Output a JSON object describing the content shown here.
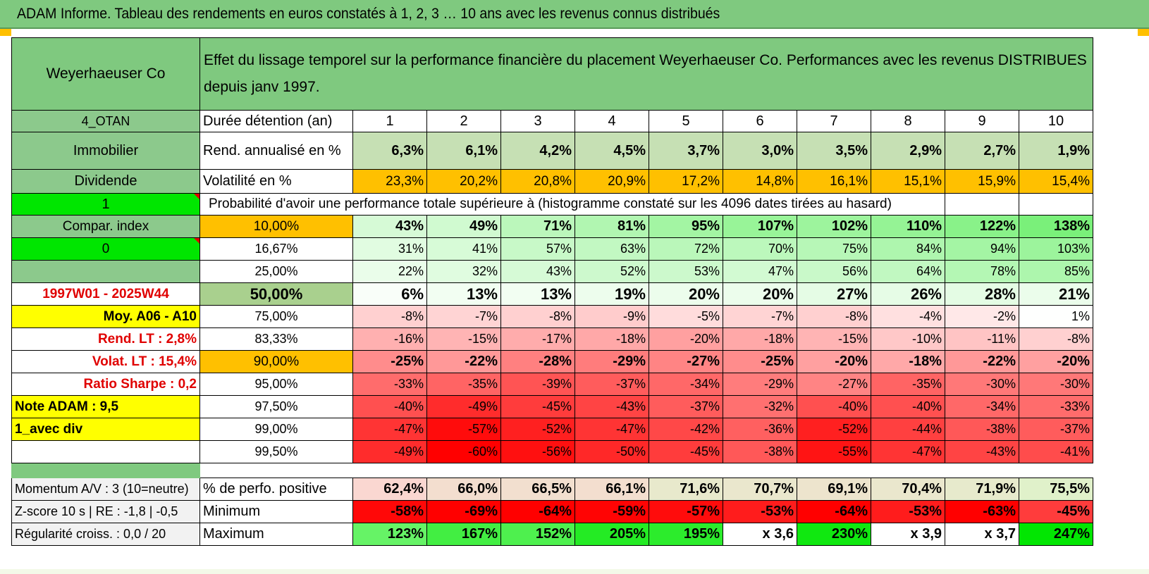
{
  "title": "ADAM Informe. Tableau des rendements en euros constatés à 1, 2, 3 … 10 ans avec les revenus connus distribués",
  "header": {
    "fund": "Weyerhaeuser Co",
    "description": "Effet du lissage temporel sur la performance financière du placement Weyerhaeuser Co. Performances avec les revenus DISTRIBUES depuis janv 1997."
  },
  "colors": {
    "header_green": "#7fc97f",
    "volatility_orange": "#ffc000",
    "lime": "#00e600",
    "yellow": "#ffff00",
    "red_text": "#e00000"
  },
  "duration": {
    "label": "Durée détention (an)",
    "years": [
      "1",
      "2",
      "3",
      "4",
      "5",
      "6",
      "7",
      "8",
      "9",
      "10"
    ]
  },
  "side": {
    "code": "4_OTAN",
    "category": "Immobilier",
    "type": "Dividende",
    "one": "1",
    "compar": "Compar. index",
    "zero": "0",
    "period": "1997W01 - 2025W44",
    "moy": "Moy. A06 - A10",
    "rend_lt": "Rend. LT :   2,8%",
    "volat_lt": "Volat. LT :   15,4%",
    "sharpe": "Ratio Sharpe :    0,2",
    "note": "Note ADAM : 9,5",
    "div": "1_avec div"
  },
  "rend": {
    "label": "Rend. annualisé en %",
    "values": [
      "6,3%",
      "6,1%",
      "4,2%",
      "4,5%",
      "3,7%",
      "3,0%",
      "3,5%",
      "2,9%",
      "2,7%",
      "1,9%"
    ]
  },
  "vol": {
    "label": "Volatilité en %",
    "values": [
      "23,3%",
      "20,2%",
      "20,8%",
      "20,9%",
      "17,2%",
      "14,8%",
      "16,1%",
      "15,1%",
      "15,9%",
      "15,4%"
    ]
  },
  "prob_title": "Probabilité d'avoir une performance totale supérieure à (histogramme constaté sur les 4096 dates tirées au hasard)",
  "prob_rows": [
    {
      "pct": "10,00%",
      "values": [
        "43%",
        "49%",
        "71%",
        "81%",
        "95%",
        "107%",
        "102%",
        "110%",
        "122%",
        "138%"
      ]
    },
    {
      "pct": "16,67%",
      "values": [
        "31%",
        "41%",
        "57%",
        "63%",
        "72%",
        "70%",
        "75%",
        "84%",
        "94%",
        "103%"
      ]
    },
    {
      "pct": "25,00%",
      "values": [
        "22%",
        "32%",
        "43%",
        "52%",
        "53%",
        "47%",
        "56%",
        "64%",
        "78%",
        "85%"
      ]
    },
    {
      "pct": "50,00%",
      "values": [
        "6%",
        "13%",
        "13%",
        "19%",
        "20%",
        "20%",
        "27%",
        "26%",
        "28%",
        "21%"
      ]
    },
    {
      "pct": "75,00%",
      "values": [
        "-8%",
        "-7%",
        "-8%",
        "-9%",
        "-5%",
        "-7%",
        "-8%",
        "-4%",
        "-2%",
        "1%"
      ]
    },
    {
      "pct": "83,33%",
      "values": [
        "-16%",
        "-15%",
        "-17%",
        "-18%",
        "-20%",
        "-18%",
        "-15%",
        "-10%",
        "-11%",
        "-8%"
      ]
    },
    {
      "pct": "90,00%",
      "values": [
        "-25%",
        "-22%",
        "-28%",
        "-29%",
        "-27%",
        "-25%",
        "-20%",
        "-18%",
        "-22%",
        "-20%"
      ]
    },
    {
      "pct": "95,00%",
      "values": [
        "-33%",
        "-35%",
        "-39%",
        "-37%",
        "-34%",
        "-29%",
        "-27%",
        "-35%",
        "-30%",
        "-30%"
      ]
    },
    {
      "pct": "97,50%",
      "values": [
        "-40%",
        "-49%",
        "-45%",
        "-43%",
        "-37%",
        "-32%",
        "-40%",
        "-40%",
        "-34%",
        "-33%"
      ]
    },
    {
      "pct": "99,00%",
      "values": [
        "-47%",
        "-57%",
        "-52%",
        "-47%",
        "-42%",
        "-36%",
        "-52%",
        "-44%",
        "-38%",
        "-37%"
      ]
    },
    {
      "pct": "99,50%",
      "values": [
        "-49%",
        "-60%",
        "-56%",
        "-50%",
        "-45%",
        "-38%",
        "-55%",
        "-47%",
        "-43%",
        "-41%"
      ]
    }
  ],
  "stats": [
    {
      "side": "Momentum A/V : 3 (10=neutre)",
      "label": "% de perfo. positive",
      "values": [
        "62,4%",
        "66,0%",
        "66,5%",
        "66,1%",
        "71,6%",
        "70,7%",
        "69,1%",
        "70,4%",
        "71,9%",
        "75,5%"
      ]
    },
    {
      "side": "Z-score 10 s | RE : -1,8 | -0,5",
      "label": "Minimum",
      "values": [
        "-58%",
        "-69%",
        "-64%",
        "-59%",
        "-57%",
        "-53%",
        "-64%",
        "-53%",
        "-63%",
        "-45%"
      ]
    },
    {
      "side": "Régularité croiss. : 0,0 / 20",
      "label": "Maximum",
      "values": [
        "123%",
        "167%",
        "152%",
        "205%",
        "195%",
        "x 3,6",
        "230%",
        "x 3,9",
        "x 3,7",
        "247%"
      ]
    }
  ]
}
